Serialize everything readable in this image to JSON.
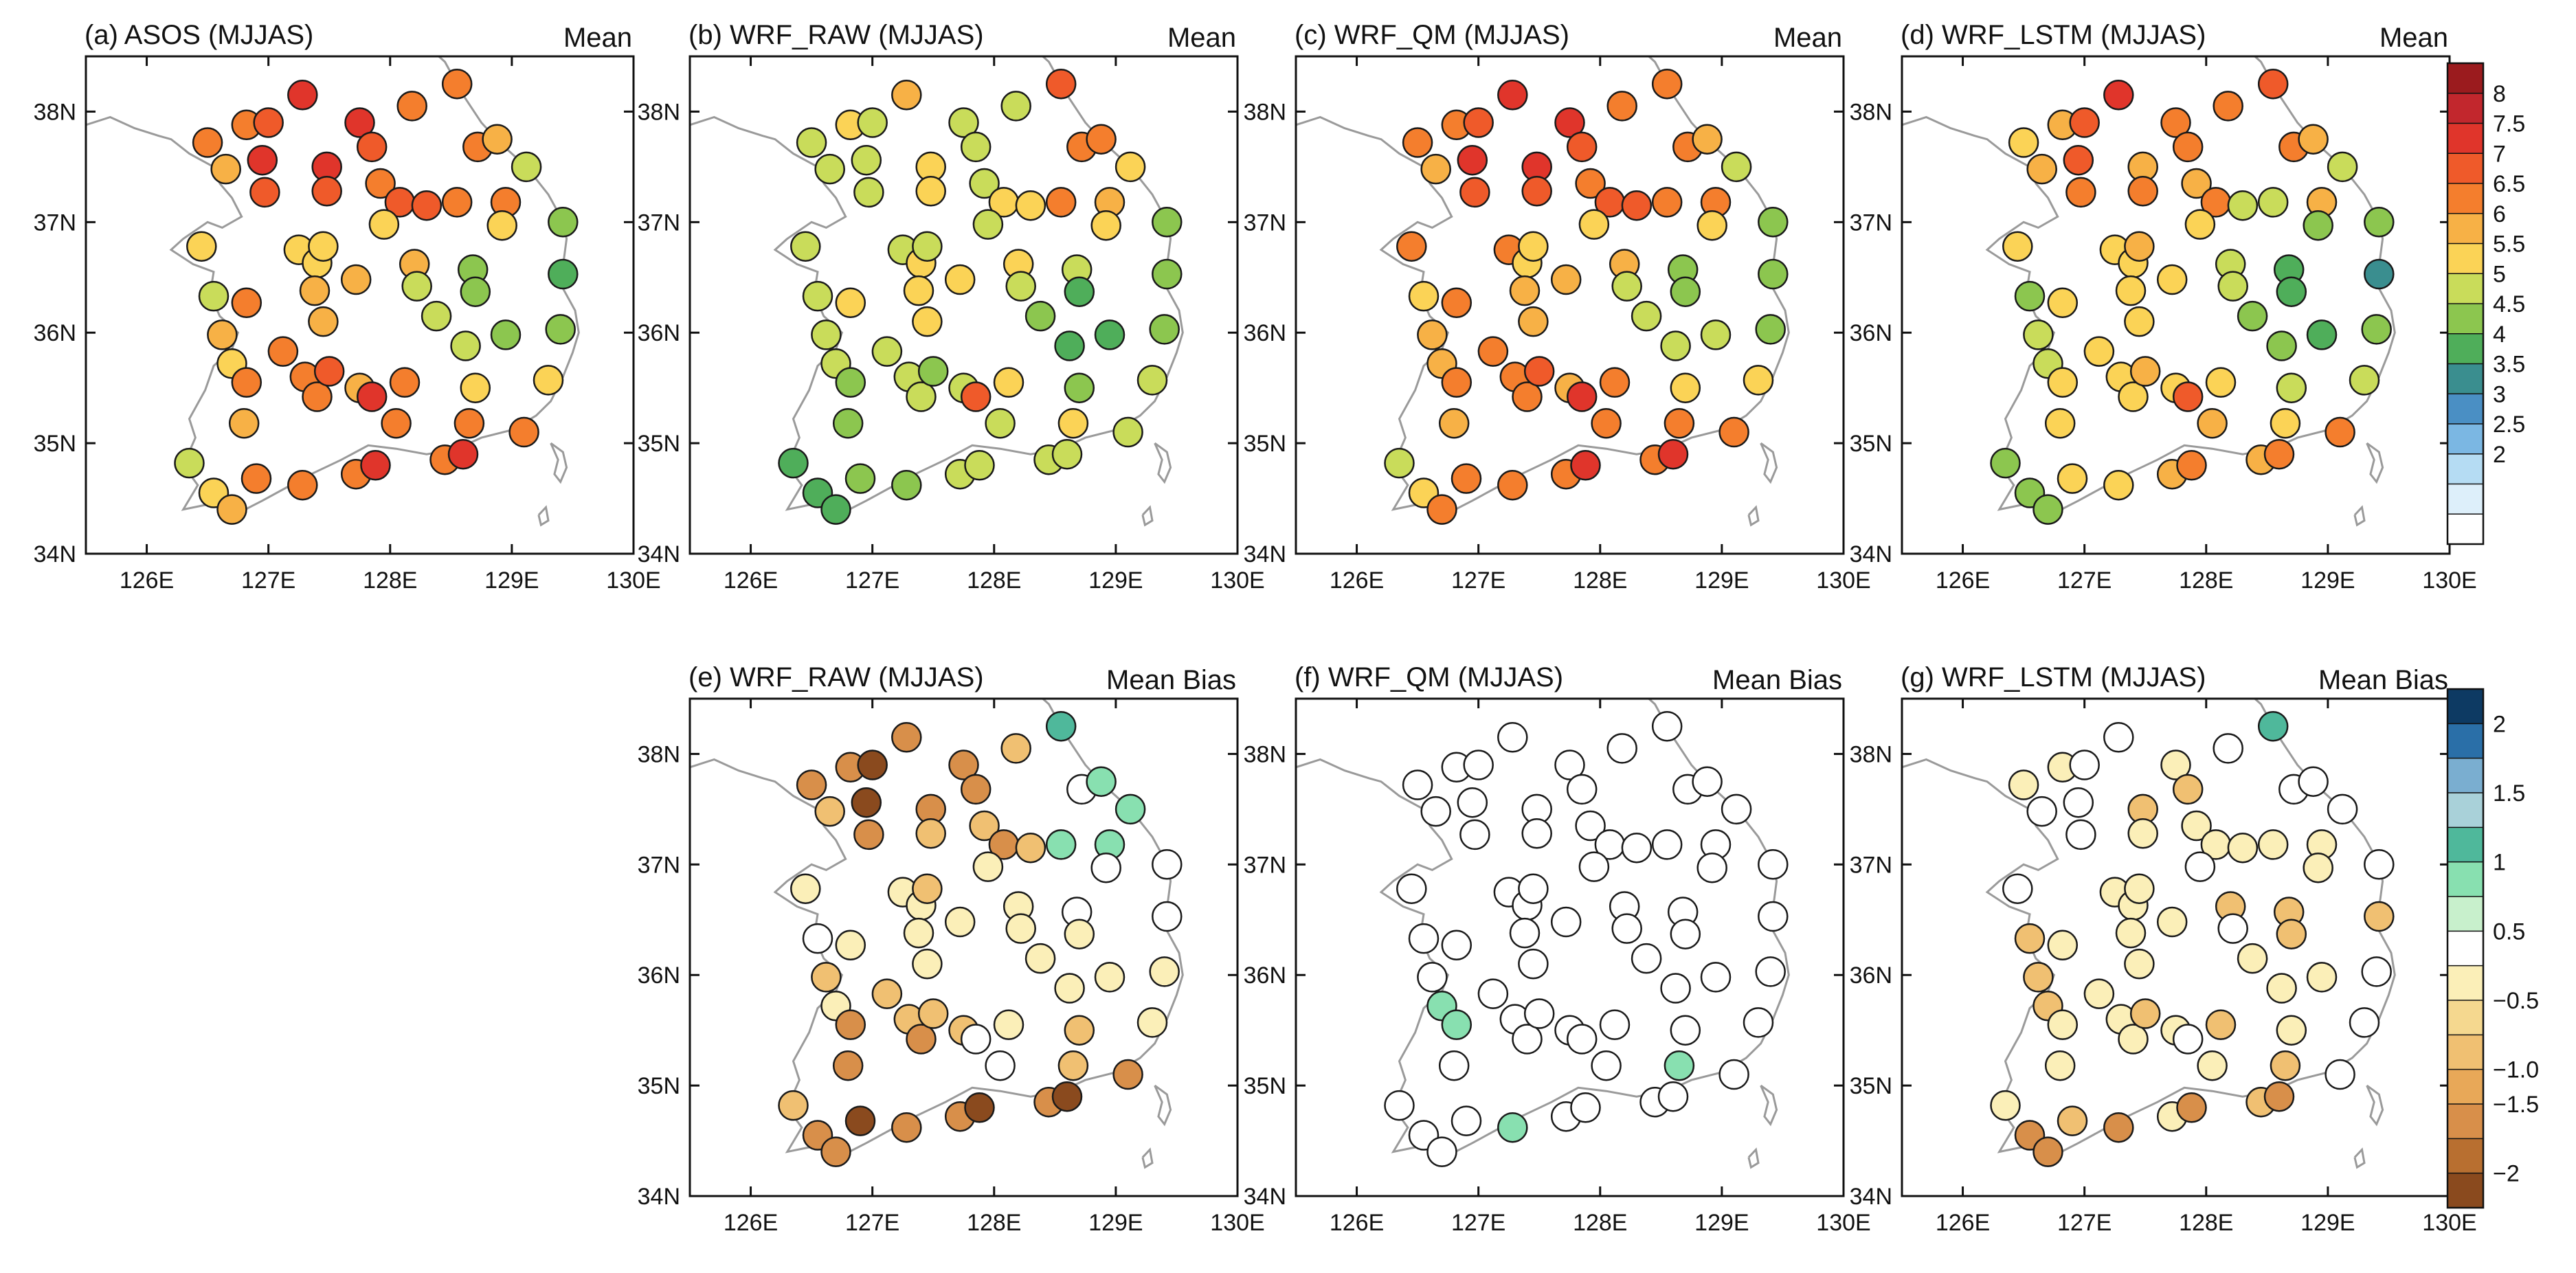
{
  "chart_data": {
    "type": "scatter",
    "figure_kind": "station-map panels",
    "axes": {
      "x_ticks": [
        "126E",
        "127E",
        "128E",
        "129E",
        "130E"
      ],
      "y_ticks": [
        "34N",
        "35N",
        "36N",
        "37N",
        "38N"
      ],
      "xlim": [
        125.5,
        130
      ],
      "ylim": [
        34,
        38.5
      ]
    },
    "stations": [
      [
        126.5,
        37.72
      ],
      [
        126.65,
        37.48
      ],
      [
        126.82,
        37.88
      ],
      [
        127.0,
        37.9
      ],
      [
        127.28,
        38.15
      ],
      [
        126.95,
        37.56
      ],
      [
        126.97,
        37.27
      ],
      [
        127.48,
        37.5
      ],
      [
        127.48,
        37.28
      ],
      [
        127.75,
        37.9
      ],
      [
        127.85,
        37.68
      ],
      [
        128.18,
        38.05
      ],
      [
        128.55,
        38.25
      ],
      [
        128.72,
        37.68
      ],
      [
        128.88,
        37.75
      ],
      [
        129.12,
        37.5
      ],
      [
        127.92,
        37.35
      ],
      [
        128.08,
        37.18
      ],
      [
        128.3,
        37.15
      ],
      [
        128.55,
        37.18
      ],
      [
        128.95,
        37.18
      ],
      [
        129.42,
        37.0
      ],
      [
        126.45,
        36.78
      ],
      [
        126.55,
        36.33
      ],
      [
        126.82,
        36.27
      ],
      [
        127.25,
        36.75
      ],
      [
        127.4,
        36.63
      ],
      [
        127.38,
        36.38
      ],
      [
        127.45,
        36.1
      ],
      [
        127.72,
        36.48
      ],
      [
        127.95,
        36.98
      ],
      [
        128.2,
        36.62
      ],
      [
        128.22,
        36.42
      ],
      [
        128.38,
        36.15
      ],
      [
        128.68,
        36.57
      ],
      [
        128.7,
        36.37
      ],
      [
        128.92,
        36.97
      ],
      [
        129.42,
        36.53
      ],
      [
        129.4,
        36.03
      ],
      [
        128.62,
        35.88
      ],
      [
        128.95,
        35.98
      ],
      [
        126.62,
        35.98
      ],
      [
        126.7,
        35.72
      ],
      [
        126.82,
        35.55
      ],
      [
        127.12,
        35.83
      ],
      [
        127.3,
        35.6
      ],
      [
        127.4,
        35.42
      ],
      [
        127.5,
        35.65
      ],
      [
        127.75,
        35.5
      ],
      [
        127.85,
        35.42
      ],
      [
        128.12,
        35.55
      ],
      [
        128.05,
        35.18
      ],
      [
        128.7,
        35.5
      ],
      [
        129.3,
        35.57
      ],
      [
        126.8,
        35.18
      ],
      [
        126.35,
        34.82
      ],
      [
        126.55,
        34.55
      ],
      [
        126.7,
        34.4
      ],
      [
        126.9,
        34.68
      ],
      [
        127.28,
        34.62
      ],
      [
        127.72,
        34.72
      ],
      [
        127.88,
        34.8
      ],
      [
        128.45,
        34.85
      ],
      [
        128.6,
        34.9
      ],
      [
        128.65,
        35.18
      ],
      [
        129.1,
        35.1
      ],
      [
        127.45,
        36.78
      ]
    ],
    "panels": [
      {
        "label": "(a) ASOS (MJJAS)",
        "stat": "Mean",
        "scale": "mean",
        "values": [
          6.5,
          6.0,
          6.5,
          7.0,
          7.5,
          7.5,
          7.0,
          7.5,
          7.0,
          7.5,
          7.0,
          6.5,
          6.5,
          6.5,
          6.0,
          5.0,
          6.5,
          7.0,
          7.0,
          6.5,
          6.5,
          4.5,
          5.5,
          5.0,
          6.5,
          5.5,
          5.5,
          6.0,
          6.0,
          6.0,
          5.5,
          6.0,
          5.0,
          5.0,
          4.5,
          4.5,
          5.5,
          4.0,
          4.5,
          5.0,
          4.5,
          6.0,
          5.5,
          6.5,
          6.5,
          6.5,
          6.5,
          7.0,
          6.0,
          7.5,
          6.5,
          6.5,
          5.5,
          5.5,
          6.0,
          5.0,
          5.5,
          6.0,
          6.5,
          6.5,
          6.5,
          7.5,
          6.5,
          7.5,
          6.5,
          6.5,
          5.5
        ]
      },
      {
        "label": "(b) WRF_RAW (MJJAS)",
        "stat": "Mean",
        "scale": "mean",
        "values": [
          5.0,
          5.0,
          5.5,
          5.0,
          6.0,
          5.0,
          5.0,
          5.5,
          5.5,
          5.0,
          5.0,
          5.0,
          7.0,
          6.5,
          6.5,
          5.5,
          5.0,
          5.5,
          5.5,
          6.5,
          6.0,
          4.5,
          5.0,
          5.0,
          5.5,
          5.0,
          5.5,
          5.5,
          5.5,
          5.5,
          5.0,
          5.5,
          5.0,
          4.5,
          5.0,
          4.0,
          5.5,
          4.5,
          4.5,
          4.0,
          4.0,
          5.0,
          5.0,
          4.5,
          5.0,
          5.0,
          5.0,
          4.5,
          5.0,
          7.0,
          5.5,
          5.0,
          4.5,
          5.0,
          4.5,
          4.0,
          4.0,
          4.0,
          4.5,
          4.5,
          5.0,
          5.0,
          5.0,
          5.0,
          5.5,
          5.0,
          5.0
        ]
      },
      {
        "label": "(c) WRF_QM (MJJAS)",
        "stat": "Mean",
        "scale": "mean",
        "values": [
          6.5,
          6.0,
          6.5,
          7.0,
          7.5,
          7.5,
          7.0,
          7.5,
          7.0,
          7.5,
          7.0,
          6.5,
          6.5,
          6.5,
          6.0,
          5.0,
          6.5,
          7.0,
          7.0,
          6.5,
          6.5,
          4.5,
          6.5,
          5.5,
          6.5,
          6.5,
          5.5,
          6.0,
          6.0,
          6.0,
          5.5,
          6.0,
          5.0,
          5.0,
          4.5,
          4.5,
          5.5,
          4.5,
          4.5,
          5.0,
          5.0,
          6.0,
          6.0,
          6.5,
          6.5,
          6.5,
          6.5,
          7.0,
          6.0,
          7.5,
          6.5,
          6.5,
          5.5,
          5.5,
          6.0,
          5.0,
          5.5,
          6.5,
          6.5,
          6.5,
          6.5,
          7.5,
          6.5,
          7.5,
          6.5,
          6.5,
          5.5
        ]
      },
      {
        "label": "(d) WRF_LSTM (MJJAS)",
        "stat": "Mean",
        "scale": "mean",
        "values": [
          5.5,
          6.0,
          6.0,
          7.0,
          7.5,
          7.0,
          6.5,
          6.0,
          6.5,
          6.5,
          6.5,
          6.5,
          7.0,
          6.5,
          6.0,
          5.0,
          6.0,
          6.5,
          5.0,
          5.0,
          6.0,
          4.5,
          5.5,
          4.5,
          5.5,
          5.5,
          5.5,
          5.5,
          5.5,
          5.5,
          5.5,
          5.0,
          5.0,
          4.5,
          4.0,
          4.0,
          4.5,
          3.5,
          4.5,
          4.5,
          4.0,
          5.0,
          5.0,
          5.5,
          5.5,
          5.5,
          5.5,
          6.0,
          5.5,
          7.0,
          5.5,
          6.0,
          5.0,
          5.0,
          5.5,
          4.5,
          4.5,
          4.5,
          5.5,
          5.5,
          6.0,
          6.5,
          6.0,
          6.5,
          5.5,
          6.5,
          6.0
        ]
      },
      {
        "label": "(e) WRF_RAW (MJJAS)",
        "stat": "Mean Bias",
        "scale": "bias",
        "values": [
          -1.5,
          -1.0,
          -1.5,
          -2.0,
          -1.5,
          -2.0,
          -1.5,
          -1.5,
          -1.0,
          -1.5,
          -1.5,
          -1.0,
          1.0,
          0.0,
          0.5,
          0.5,
          -1.0,
          -1.5,
          -1.0,
          0.5,
          0.5,
          0.0,
          -0.5,
          0.0,
          -0.5,
          -0.5,
          -0.5,
          -0.5,
          -0.5,
          -0.5,
          -0.5,
          -0.5,
          -0.5,
          -0.5,
          0.0,
          -0.5,
          0.0,
          0.0,
          -0.5,
          -0.5,
          -0.5,
          -1.0,
          -0.5,
          -1.5,
          -1.0,
          -1.0,
          -1.5,
          -1.0,
          -1.0,
          0.0,
          -0.5,
          0.0,
          -1.0,
          -0.5,
          -1.5,
          -1.0,
          -1.5,
          -1.5,
          -2.0,
          -1.5,
          -1.5,
          -2.0,
          -1.5,
          -2.0,
          -1.0,
          -1.5,
          -1.0
        ]
      },
      {
        "label": "(f) WRF_QM (MJJAS)",
        "stat": "Mean Bias",
        "scale": "bias",
        "values": [
          0.0,
          0.0,
          0.0,
          0.0,
          0.0,
          0.0,
          0.0,
          0.0,
          0.0,
          0.0,
          0.0,
          0.0,
          0.0,
          0.0,
          0.0,
          0.0,
          0.0,
          0.0,
          0.0,
          0.0,
          0.0,
          0.0,
          0.0,
          0.0,
          0.0,
          0.0,
          0.0,
          0.0,
          0.0,
          0.0,
          0.0,
          0.0,
          0.0,
          0.0,
          0.0,
          0.0,
          0.0,
          0.0,
          0.0,
          0.0,
          0.0,
          0.0,
          0.5,
          0.5,
          0.0,
          0.0,
          0.0,
          0.0,
          0.0,
          0.0,
          0.0,
          0.0,
          0.0,
          0.0,
          0.0,
          0.0,
          0.0,
          0.0,
          0.0,
          0.5,
          0.0,
          0.0,
          0.0,
          0.0,
          0.5,
          0.0,
          0.0
        ]
      },
      {
        "label": "(g) WRF_LSTM (MJJAS)",
        "stat": "Mean Bias",
        "scale": "bias",
        "values": [
          -0.5,
          0.0,
          -0.5,
          0.0,
          0.0,
          0.0,
          0.0,
          -1.0,
          -0.5,
          -0.5,
          -1.0,
          0.0,
          1.0,
          0.0,
          0.0,
          0.0,
          -0.5,
          -0.5,
          -0.5,
          -0.5,
          -0.5,
          0.0,
          0.0,
          -1.0,
          -0.5,
          -0.5,
          -0.5,
          -0.5,
          -0.5,
          -0.5,
          0.0,
          -1.0,
          0.0,
          -0.5,
          -1.0,
          -1.0,
          -0.5,
          -1.0,
          0.0,
          -0.5,
          -0.5,
          -1.0,
          -1.0,
          -0.5,
          -0.5,
          -0.5,
          -0.5,
          -1.0,
          -0.5,
          0.0,
          -1.0,
          -0.5,
          -0.5,
          0.0,
          -0.5,
          -0.5,
          -1.5,
          -1.5,
          -1.0,
          -1.5,
          -0.5,
          -1.5,
          -1.0,
          -1.5,
          -1.0,
          0.0,
          -0.5
        ]
      }
    ],
    "colorbars": {
      "mean": {
        "labels": [
          "8",
          "7.5",
          "7",
          "6.5",
          "6",
          "5.5",
          "5",
          "4.5",
          "4",
          "3.5",
          "3",
          "2.5",
          "2"
        ],
        "thresholds": [
          8,
          7.5,
          7,
          6.5,
          6,
          5.5,
          5,
          4.5,
          4,
          3.5,
          3,
          2.5,
          2
        ],
        "colors": [
          "#9b1b1e",
          "#c2272d",
          "#e0352b",
          "#ef5a2a",
          "#f47e2d",
          "#f7b146",
          "#fbd356",
          "#c9dc5a",
          "#8cc64f",
          "#4fae5a",
          "#3a8e8f",
          "#4a8fc4",
          "#7bb7e3",
          "#b5dcf3",
          "#ddeffa",
          "#ffffff"
        ]
      },
      "bias": {
        "labels": [
          "2",
          "1.5",
          "1",
          "0.5",
          "−0.5",
          "−1.0",
          "−1.5",
          "−2"
        ],
        "bins": [
          2.0,
          1.5,
          1.0,
          0.5,
          0.0,
          -0.5,
          -1.0,
          -1.5,
          -2.0
        ],
        "colors": [
          "#0d3a63",
          "#2a6fa8",
          "#7aaed0",
          "#a9d1d9",
          "#4fb89b",
          "#88e0b0",
          "#c8f0cc",
          "#ffffff",
          "#fbefb8",
          "#f5d88f",
          "#f0c072",
          "#e8a858",
          "#d88f4a",
          "#b86f30",
          "#8a4a1e"
        ]
      }
    },
    "coastline_color": "#9a9a9a",
    "marker_outline": "#1a1a1a"
  }
}
